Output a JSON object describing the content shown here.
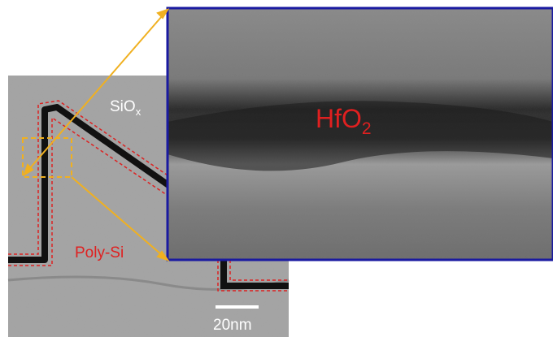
{
  "labels": {
    "oxide": {
      "base": "SiO",
      "sub": "x"
    },
    "poly": {
      "text": "Poly-Si"
    },
    "dielectric": {
      "base": "HfO",
      "sub": "2"
    }
  },
  "scale_bar": {
    "text": "20nm"
  }
}
